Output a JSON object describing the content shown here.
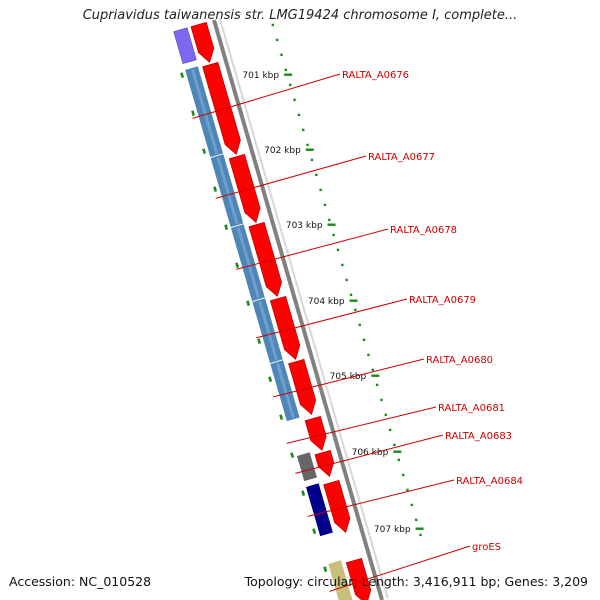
{
  "title": "Cupriavidus taiwanensis str. LMG19424 chromosome I, complete...",
  "footer": {
    "accession": "Accession: NC_010528",
    "stats": "Topology: circular; Length: 3,416,911 bp; Genes: 3,209"
  },
  "colors": {
    "cds_red": "#ff0000",
    "blue_track": "#4f86b8",
    "purple_track": "#7b68ee",
    "dark_gray_track": "#666666",
    "navy_track": "#00008b",
    "khaki_track": "#c8bf7a",
    "tick_green": "#1a8a1a",
    "label_red": "#cc0000",
    "backbone": "#808080"
  },
  "scale_labels": [
    "701 kbp",
    "702 kbp",
    "703 kbp",
    "704 kbp",
    "705 kbp",
    "706 kbp",
    "707 kbp"
  ],
  "genes": [
    {
      "label": "RALTA_A0676",
      "track": "blue_track"
    },
    {
      "label": "RALTA_A0677",
      "track": "blue_track"
    },
    {
      "label": "RALTA_A0678",
      "track": "blue_track"
    },
    {
      "label": "RALTA_A0679",
      "track": "blue_track"
    },
    {
      "label": "RALTA_A0680",
      "track": "blue_track"
    },
    {
      "label": "RALTA_A0681",
      "track": "none"
    },
    {
      "label": "RALTA_A0683",
      "track": "dark_gray_track"
    },
    {
      "label": "RALTA_A0684",
      "track": "navy_track"
    },
    {
      "label": "groES",
      "track": "khaki_track"
    }
  ]
}
